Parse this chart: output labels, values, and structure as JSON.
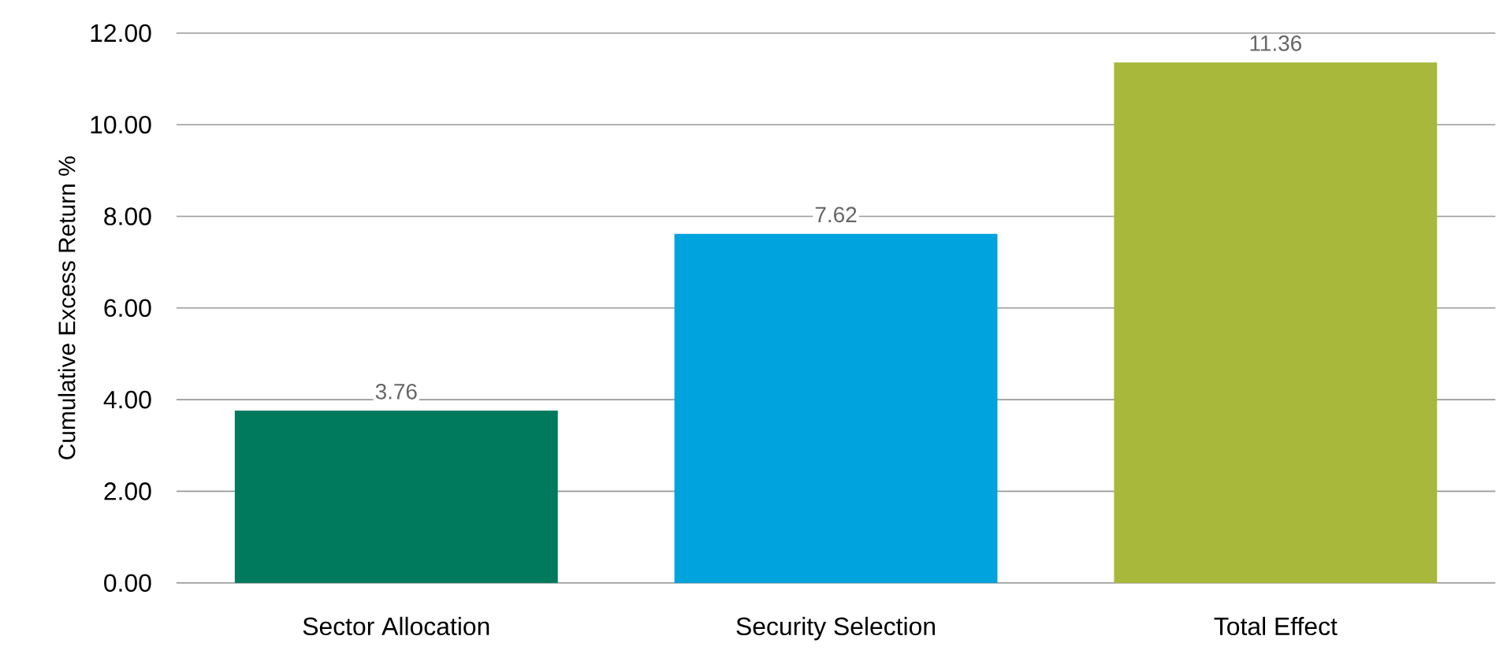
{
  "chart_data": {
    "type": "bar",
    "ylabel": "Cumulative Excess Return %",
    "categories": [
      "Sector Allocation",
      "Security Selection",
      "Total Effect"
    ],
    "values": [
      3.76,
      7.62,
      11.36
    ],
    "colors": [
      "#007a5c",
      "#00a3de",
      "#a8b83a"
    ],
    "value_labels": [
      "3.76",
      "7.62",
      "11.36"
    ],
    "ylim": [
      0,
      12
    ],
    "yticks": [
      {
        "value": 0,
        "label": "0.00"
      },
      {
        "value": 2,
        "label": "2.00"
      },
      {
        "value": 4,
        "label": "4.00"
      },
      {
        "value": 6,
        "label": "6.00"
      },
      {
        "value": 8,
        "label": "8.00"
      },
      {
        "value": 10,
        "label": "10.00"
      },
      {
        "value": 12,
        "label": "12.00"
      }
    ],
    "grid": "y"
  }
}
